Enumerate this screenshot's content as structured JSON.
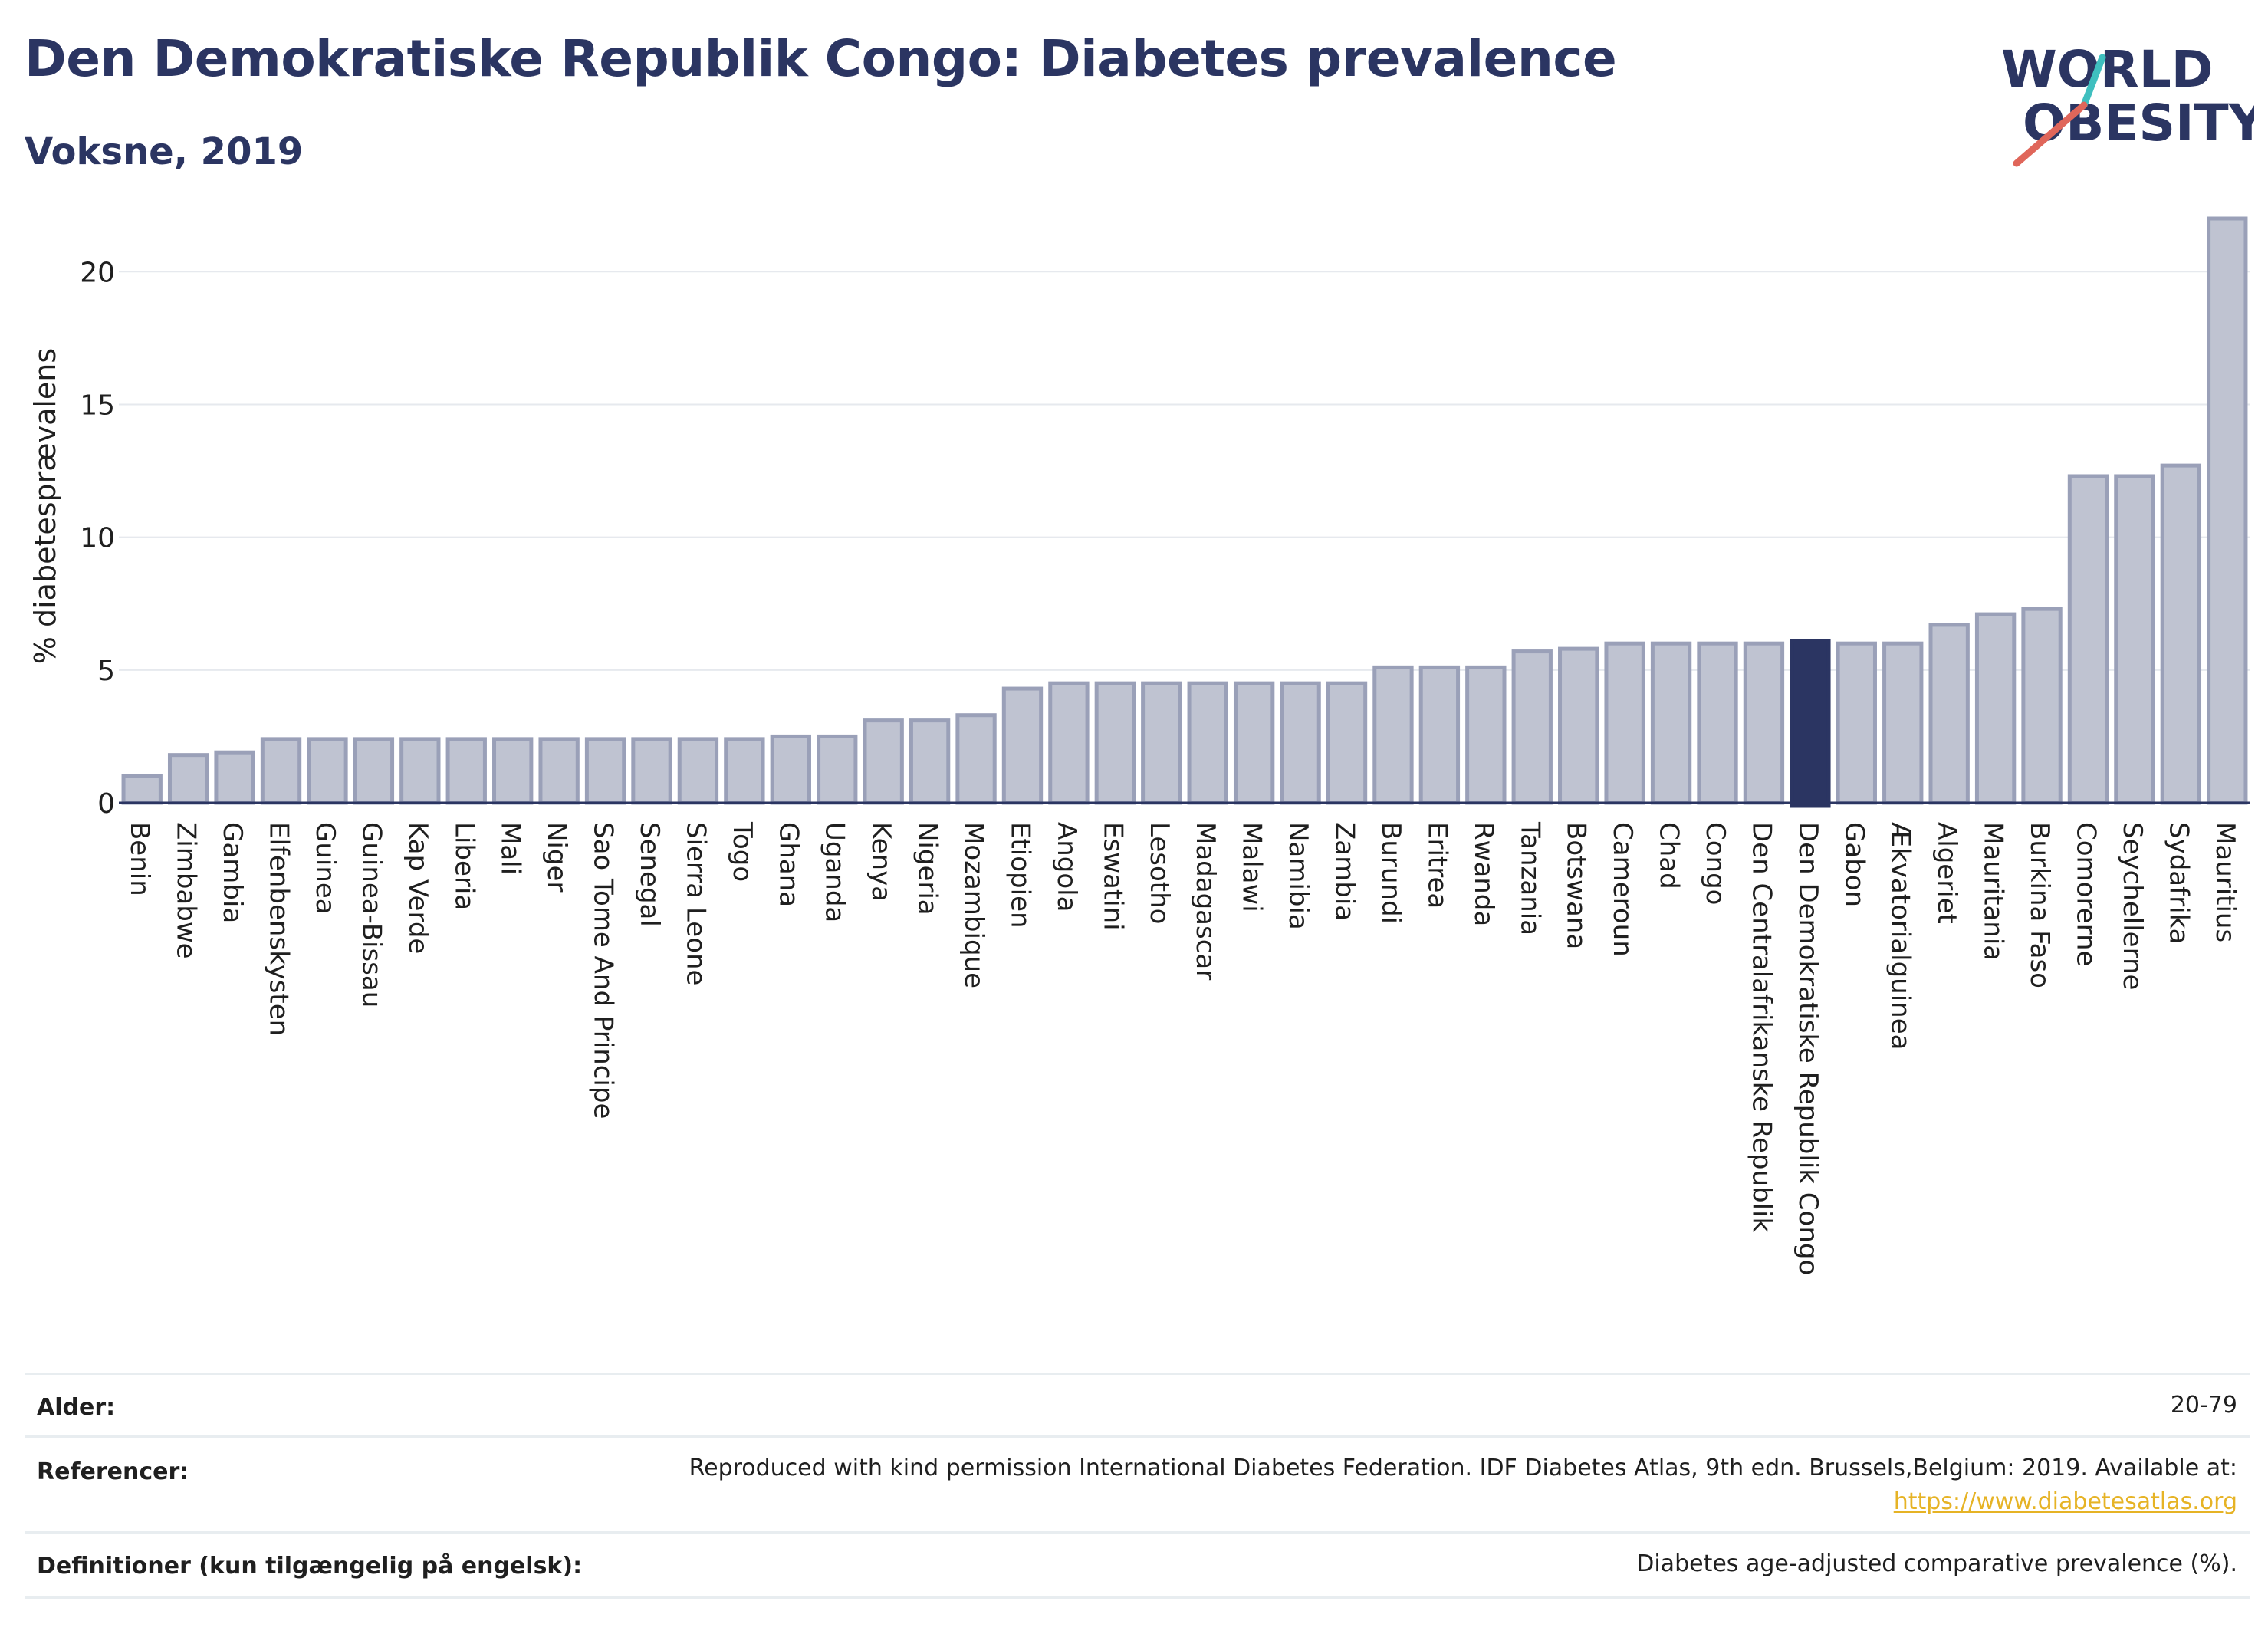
{
  "header": {
    "title": "Den Demokratiske Republik Congo: Diabetes prevalence",
    "subtitle": "Voksne, 2019"
  },
  "logo": {
    "line1": "WORLD",
    "line2": "OBESITY",
    "colors": {
      "text": "#2b3562",
      "slash_top": "#3fbfbf",
      "slash_bottom": "#e0665a"
    }
  },
  "chart_data": {
    "type": "bar",
    "title": "Den Demokratiske Republik Congo: Diabetes prevalence",
    "ylabel": "% diabetesprævalens",
    "ylim": [
      0,
      22
    ],
    "yticks": [
      0,
      5,
      10,
      15,
      20
    ],
    "grid": true,
    "highlight": "Den Demokratiske Republik Congo",
    "colors": {
      "bar": "#bfc3d1",
      "bar_edge": "#9aa0b8",
      "highlight": "#2b3562",
      "grid": "#e6e9ee",
      "axis": "#2b3562"
    },
    "categories": [
      "Benin",
      "Zimbabwe",
      "Gambia",
      "Elfenbenskysten",
      "Guinea",
      "Guinea-Bissau",
      "Kap Verde",
      "Liberia",
      "Mali",
      "Niger",
      "Sao Tome And Principe",
      "Senegal",
      "Sierra Leone",
      "Togo",
      "Ghana",
      "Uganda",
      "Kenya",
      "Nigeria",
      "Mozambique",
      "Etiopien",
      "Angola",
      "Eswatini",
      "Lesotho",
      "Madagascar",
      "Malawi",
      "Namibia",
      "Zambia",
      "Burundi",
      "Eritrea",
      "Rwanda",
      "Tanzania",
      "Botswana",
      "Cameroun",
      "Chad",
      "Congo",
      "Den Centralafrikanske Republik",
      "Den Demokratiske Republik Congo",
      "Gabon",
      "Ækvatorialguinea",
      "Algeriet",
      "Mauritania",
      "Burkina Faso",
      "Comorerne",
      "Seychellerne",
      "Sydafrika",
      "Mauritius"
    ],
    "values": [
      1.0,
      1.8,
      1.9,
      2.4,
      2.4,
      2.4,
      2.4,
      2.4,
      2.4,
      2.4,
      2.4,
      2.4,
      2.4,
      2.4,
      2.5,
      2.5,
      3.1,
      3.1,
      3.3,
      4.3,
      4.5,
      4.5,
      4.5,
      4.5,
      4.5,
      4.5,
      4.5,
      5.1,
      5.1,
      5.1,
      5.7,
      5.8,
      6.0,
      6.0,
      6.0,
      6.0,
      6.1,
      6.0,
      6.0,
      6.7,
      7.1,
      7.3,
      12.3,
      12.3,
      12.7,
      22.0
    ]
  },
  "notes": {
    "age_label": "Alder:",
    "age_value": "20-79",
    "ref_label": "Referencer:",
    "ref_text": "Reproduced with kind permission International Diabetes Federation. IDF Diabetes Atlas, 9th edn. Brussels,Belgium: 2019. Available at:",
    "ref_link": "https://www.diabetesatlas.org",
    "def_label": "Definitioner (kun tilgængelig på engelsk):",
    "def_value": "Diabetes age-adjusted comparative prevalence (%)."
  }
}
